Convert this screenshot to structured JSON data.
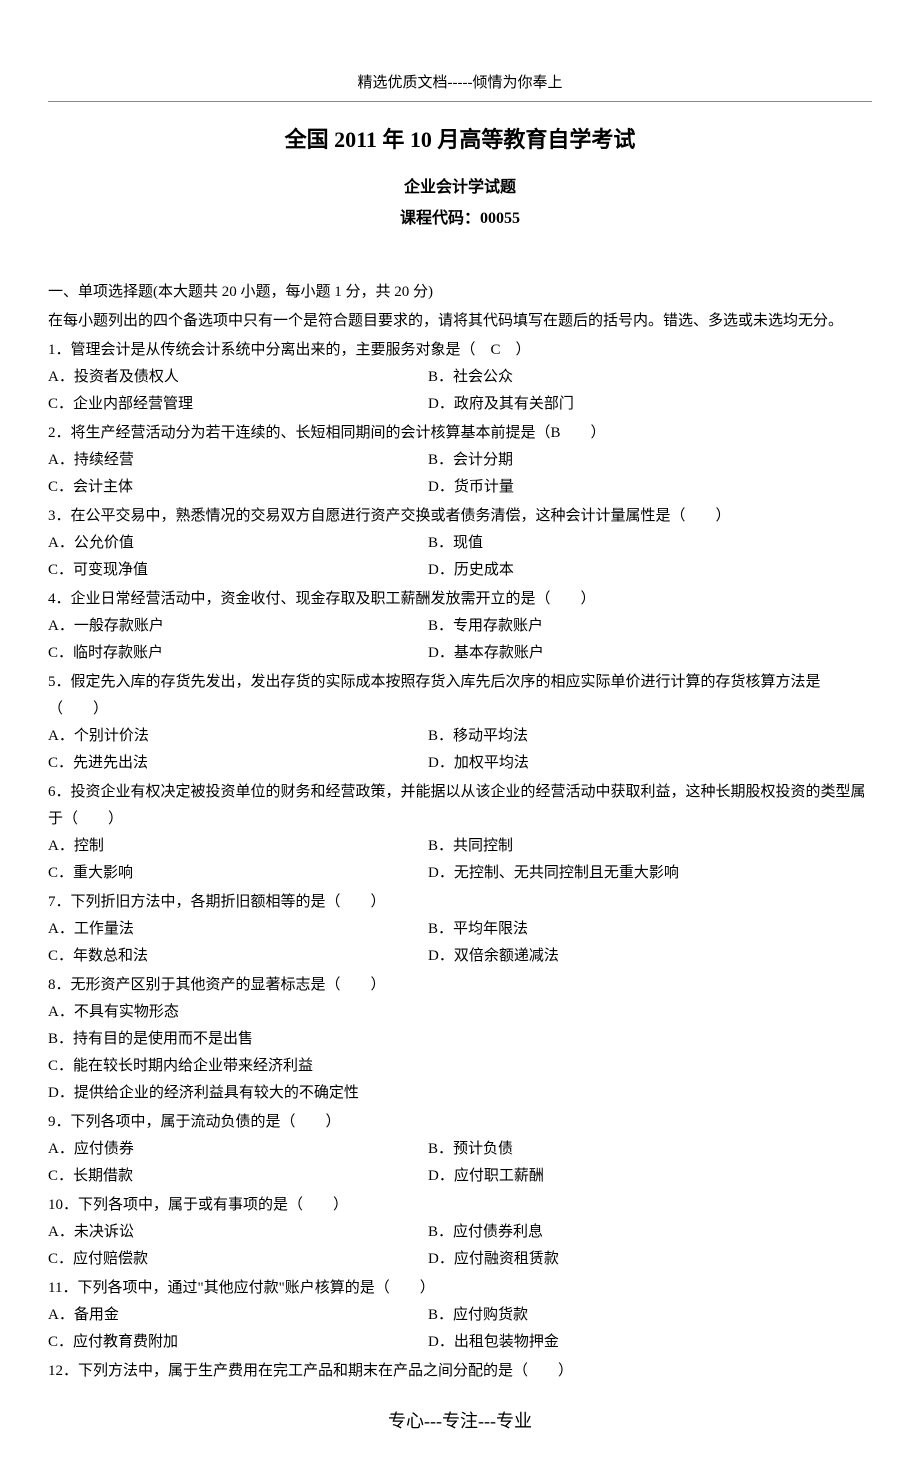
{
  "header": "精选优质文档-----倾情为你奉上",
  "title": "全国 2011 年 10 月高等教育自学考试",
  "subtitle": "企业会计学试题",
  "courseCode": "课程代码：00055",
  "sectionIntro1": "一、单项选择题(本大题共 20 小题，每小题 1 分，共 20 分)",
  "sectionIntro2": "在每小题列出的四个备选项中只有一个是符合题目要求的，请将其代码填写在题后的括号内。错选、多选或未选均无分。",
  "questions": [
    {
      "text": "1．管理会计是从传统会计系统中分离出来的，主要服务对象是（　C　）",
      "opts": [
        [
          "A．投资者及债权人",
          "B．社会公众"
        ],
        [
          "C．企业内部经营管理",
          "D．政府及其有关部门"
        ]
      ]
    },
    {
      "text": "2．将生产经营活动分为若干连续的、长短相同期间的会计核算基本前提是（B　　）",
      "opts": [
        [
          "A．持续经营",
          "B．会计分期"
        ],
        [
          "C．会计主体",
          "D．货币计量"
        ]
      ]
    },
    {
      "text": "3．在公平交易中，熟悉情况的交易双方自愿进行资产交换或者债务清偿，这种会计计量属性是（　　）",
      "opts": [
        [
          "A．公允价值",
          "B．现值"
        ],
        [
          "C．可变现净值",
          "D．历史成本"
        ]
      ]
    },
    {
      "text": "4．企业日常经营活动中，资金收付、现金存取及职工薪酬发放需开立的是（　　）",
      "opts": [
        [
          "A．一般存款账户",
          "B．专用存款账户"
        ],
        [
          "C．临时存款账户",
          "D．基本存款账户"
        ]
      ]
    },
    {
      "text": "5．假定先入库的存货先发出，发出存货的实际成本按照存货入库先后次序的相应实际单价进行计算的存货核算方法是（　　）",
      "opts": [
        [
          "A．个别计价法",
          "B．移动平均法"
        ],
        [
          "C．先进先出法",
          "D．加权平均法"
        ]
      ]
    },
    {
      "text": "6．投资企业有权决定被投资单位的财务和经营政策，并能据以从该企业的经营活动中获取利益，这种长期股权投资的类型属于（　　）",
      "opts": [
        [
          "A．控制",
          "B．共同控制"
        ],
        [
          "C．重大影响",
          "D．无控制、无共同控制且无重大影响"
        ]
      ]
    },
    {
      "text": "7．下列折旧方法中，各期折旧额相等的是（　　）",
      "opts": [
        [
          "A．工作量法",
          "B．平均年限法"
        ],
        [
          "C．年数总和法",
          "D．双倍余额递减法"
        ]
      ]
    },
    {
      "text": "8．无形资产区别于其他资产的显著标志是（　　）",
      "fullOpts": [
        "A．不具有实物形态",
        "B．持有目的是使用而不是出售",
        "C．能在较长时期内给企业带来经济利益",
        "D．提供给企业的经济利益具有较大的不确定性"
      ]
    },
    {
      "text": "9．下列各项中，属于流动负债的是（　　）",
      "opts": [
        [
          "A．应付债券",
          "B．预计负债"
        ],
        [
          "C．长期借款",
          "D．应付职工薪酬"
        ]
      ]
    },
    {
      "text": "10．下列各项中，属于或有事项的是（　　）",
      "opts": [
        [
          "A．未决诉讼",
          "B．应付债券利息"
        ],
        [
          "C．应付赔偿款",
          "D．应付融资租赁款"
        ]
      ]
    },
    {
      "text": "11．下列各项中，通过\"其他应付款\"账户核算的是（　　）",
      "opts": [
        [
          "A．备用金",
          "B．应付购货款"
        ],
        [
          "C．应付教育费附加",
          "D．出租包装物押金"
        ]
      ]
    },
    {
      "text": "12．下列方法中，属于生产费用在完工产品和期末在产品之间分配的是（　　）",
      "opts": []
    }
  ],
  "footer": "专心---专注---专业"
}
